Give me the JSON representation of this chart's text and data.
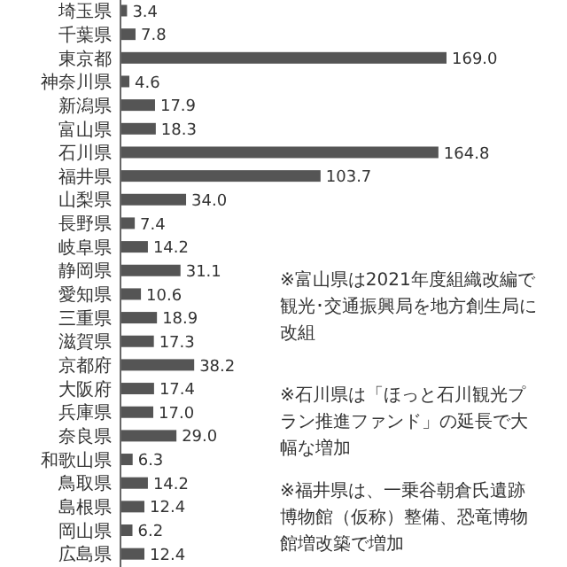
{
  "chart_data": {
    "type": "bar",
    "orientation": "horizontal",
    "color": "#555555",
    "value_labels": [
      "3.4",
      "7.8",
      "169.0",
      "4.6",
      "17.9",
      "18.3",
      "164.8",
      "103.7",
      "34.0",
      "7.4",
      "14.2",
      "31.1",
      "10.6",
      "18.9",
      "17.3",
      "38.2",
      "17.4",
      "17.0",
      "29.0",
      "6.3",
      "14.2",
      "12.4",
      "6.2",
      "12.4"
    ],
    "categories": [
      "埼玉県",
      "千葉県",
      "東京都",
      "神奈川県",
      "新潟県",
      "富山県",
      "石川県",
      "福井県",
      "山梨県",
      "長野県",
      "岐阜県",
      "静岡県",
      "愛知県",
      "三重県",
      "滋賀県",
      "京都府",
      "大阪府",
      "兵庫県",
      "奈良県",
      "和歌山県",
      "鳥取県",
      "島根県",
      "岡山県",
      "広島県"
    ],
    "values": [
      3.4,
      7.8,
      169.0,
      4.6,
      17.9,
      18.3,
      164.8,
      103.7,
      34.0,
      7.4,
      14.2,
      31.1,
      10.6,
      18.9,
      17.3,
      38.2,
      17.4,
      17.0,
      29.0,
      6.3,
      14.2,
      12.4,
      6.2,
      12.4
    ],
    "annotations": [
      "※富山県は2021年度組織改編で観光･交通振興局を地方創生局に改組",
      "※石川県は「ほっと石川観光プラン推進ファンド」の延長で大幅な増加",
      "※福井県は、一乗谷朝倉氏遺跡博物館（仮称）整備、恐竜博物館増改築で増加"
    ]
  }
}
